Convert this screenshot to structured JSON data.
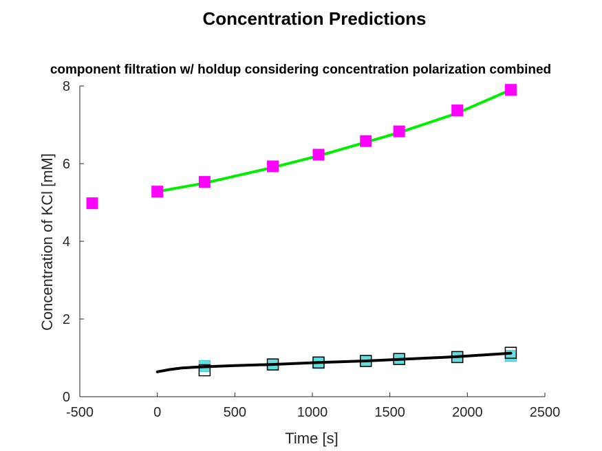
{
  "figure": {
    "title": "Concentration Predictions",
    "subtitle": "component filtration w/ holdup considering concentration polarization combined"
  },
  "chart_data": {
    "type": "scatter",
    "title": "Concentration Predictions",
    "subtitle": "component filtration w/ holdup considering concentration polarization combined",
    "xlabel": "Time [s]",
    "ylabel": "Concentration of KCl [mM]",
    "xlim": [
      -500,
      2500
    ],
    "ylim": [
      0,
      8
    ],
    "xticks": [
      -500,
      0,
      500,
      1000,
      1500,
      2000,
      2500
    ],
    "yticks": [
      0,
      2,
      4,
      6,
      8
    ],
    "xtick_labels": [
      "-500",
      "0",
      "500",
      "1000",
      "1500",
      "2000",
      "2500"
    ],
    "ytick_labels": [
      "0",
      "2",
      "4",
      "6",
      "8"
    ],
    "grid": false,
    "legend": "none",
    "series": [
      {
        "kind": "markers",
        "marker": "square",
        "color": "#ff00ff",
        "filled": true,
        "x": [
          -420,
          0,
          305,
          745,
          1040,
          1345,
          1560,
          1935,
          2280
        ],
        "y": [
          4.98,
          5.28,
          5.53,
          5.93,
          6.23,
          6.58,
          6.83,
          7.37,
          7.9
        ]
      },
      {
        "kind": "line",
        "color": "#00ee00",
        "x": [
          0,
          305,
          745,
          1040,
          1345,
          1560,
          1935,
          2280
        ],
        "y": [
          5.28,
          5.5,
          5.9,
          6.2,
          6.55,
          6.8,
          7.3,
          7.9
        ]
      },
      {
        "kind": "markers",
        "marker": "square",
        "color": "#000000",
        "filled": false,
        "x": [
          305,
          745,
          1040,
          1345,
          1560,
          1935,
          2280
        ],
        "y": [
          0.68,
          0.83,
          0.88,
          0.92,
          0.97,
          1.02,
          1.13
        ]
      },
      {
        "kind": "markers",
        "marker": "square",
        "color": "#66dddd",
        "filled": true,
        "x": [
          305,
          745,
          1040,
          1345,
          1560,
          1935,
          2280
        ],
        "y": [
          0.79,
          0.83,
          0.87,
          0.92,
          0.97,
          1.02,
          1.05
        ]
      },
      {
        "kind": "line",
        "color": "#000000",
        "x": [
          0,
          80,
          160,
          240,
          305,
          500,
          745,
          1040,
          1345,
          1560,
          1935,
          2280
        ],
        "y": [
          0.64,
          0.7,
          0.74,
          0.76,
          0.77,
          0.8,
          0.83,
          0.88,
          0.92,
          0.96,
          1.03,
          1.12
        ]
      }
    ]
  }
}
